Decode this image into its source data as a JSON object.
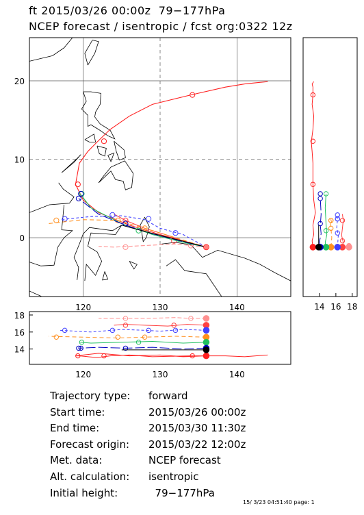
{
  "header": {
    "line1": "ft 2015/03/26 00:00z  79−177hPa",
    "line2": "NCEP forecast / isentropic / fcst org:0322 12z"
  },
  "map": {
    "lon_ticks": [
      "120",
      "130",
      "140"
    ],
    "lat_ticks": [
      "20",
      "10",
      "0"
    ],
    "lon_range": [
      113,
      147
    ],
    "lat_range": [
      -7.5,
      25.5
    ]
  },
  "side_panel": {
    "ticks": [
      "14",
      "16",
      "18"
    ],
    "range": [
      12,
      18.6
    ]
  },
  "bottom_panel": {
    "ticks": [
      "18",
      "16",
      "14"
    ],
    "range": [
      12.2,
      18.4
    ]
  },
  "info": [
    {
      "label": "Trajectory type:",
      "value": "forward"
    },
    {
      "label": "Start time:",
      "value": "2015/03/26 00:00z"
    },
    {
      "label": "End time:",
      "value": "2015/03/30 11:30z"
    },
    {
      "label": "Forecast origin:",
      "value": "2015/03/22 12:00z"
    },
    {
      "label": "Met. data:",
      "value": "NCEP forecast"
    },
    {
      "label": "Alt. calculation:",
      "value": "isentropic"
    },
    {
      "label": "Initial height:",
      "value": "  79−177hPa"
    }
  ],
  "footer": "15/ 3/23 04:51:40 page: 1",
  "trajectories": [
    {
      "color": "#ff2020",
      "dash": "",
      "height": 13.2,
      "points": [
        [
          136,
          -1.2
        ],
        [
          133,
          -0.4
        ],
        [
          130,
          0.4
        ],
        [
          126,
          1.6
        ],
        [
          122,
          3.2
        ],
        [
          120,
          4.8
        ],
        [
          119,
          6.8
        ],
        [
          119.5,
          9.5
        ],
        [
          120.6,
          11
        ],
        [
          121.8,
          12.2
        ],
        [
          123.5,
          13.8
        ],
        [
          126,
          15.5
        ],
        [
          129,
          17
        ],
        [
          134,
          18.2
        ],
        [
          138.5,
          19.2
        ],
        [
          141,
          19.6
        ],
        [
          144,
          19.9
        ]
      ],
      "markers": [
        [
          119.3,
          6.8
        ],
        [
          122.7,
          12.3
        ],
        [
          134.2,
          18.2
        ]
      ],
      "pressure": [
        13.2,
        13.1,
        13.3,
        13.2,
        13.5,
        13.3,
        13.2,
        13.2,
        13.1,
        13.0,
        13.2,
        13.3,
        13.1,
        13.2
      ]
    },
    {
      "color": "#ff4040",
      "dash": "",
      "height": 16.8,
      "points": [
        [
          136,
          -1.2
        ],
        [
          133.5,
          -0.6
        ],
        [
          131,
          0.3
        ],
        [
          128,
          1.2
        ],
        [
          125.5,
          2.2
        ],
        [
          124,
          3
        ]
      ],
      "markers": [
        [
          125.5,
          2.2
        ],
        [
          131.8,
          -0.4
        ]
      ],
      "pressure": [
        16.8,
        16.9,
        16.7,
        16.8,
        16.9,
        16.8,
        16.8
      ]
    },
    {
      "color": "#ff9090",
      "dash": "6 3",
      "height": 17.6,
      "points": [
        [
          136,
          -1.2
        ],
        [
          134,
          -1.0
        ],
        [
          132,
          -0.8
        ],
        [
          128,
          -1.0
        ],
        [
          124,
          -1.2
        ],
        [
          122,
          -1.1
        ]
      ],
      "markers": [
        [
          134,
          -1.0
        ],
        [
          125.5,
          -1.2
        ]
      ],
      "pressure": [
        17.6,
        17.6,
        17.7,
        17.6,
        17.6
      ]
    },
    {
      "color": "#4040ff",
      "dash": "4 3",
      "height": 16.2,
      "points": [
        [
          136,
          -1.2
        ],
        [
          133,
          0.4
        ],
        [
          130,
          1.2
        ],
        [
          128,
          2.3
        ],
        [
          125,
          2.8
        ],
        [
          121,
          2.7
        ],
        [
          117,
          2.3
        ]
      ],
      "markers": [
        [
          123.8,
          2.9
        ],
        [
          128.5,
          2.4
        ],
        [
          132,
          0.6
        ],
        [
          117.6,
          2.4
        ]
      ],
      "pressure": [
        16.2,
        16.3,
        16.1,
        16.2,
        16.3,
        16.0,
        16.2
      ]
    },
    {
      "color": "#ff9020",
      "dash": "6 4",
      "height": 15.4,
      "points": [
        [
          136,
          -1.2
        ],
        [
          132,
          0
        ],
        [
          128,
          1.2
        ],
        [
          124.5,
          2.2
        ],
        [
          120,
          2.3
        ],
        [
          115.5,
          1.8
        ]
      ],
      "markers": [
        [
          124.5,
          2.2
        ],
        [
          116.5,
          2.2
        ],
        [
          128,
          1.2
        ]
      ],
      "pressure": [
        15.4,
        15.5,
        15.4,
        15.3,
        15.4,
        15.5
      ]
    },
    {
      "color": "#20c060",
      "dash": "",
      "height": 14.8,
      "points": [
        [
          136,
          -1.2
        ],
        [
          133,
          -0.6
        ],
        [
          129,
          0.4
        ],
        [
          125,
          1.8
        ],
        [
          121,
          3.8
        ],
        [
          119.6,
          5.6
        ]
      ],
      "markers": [
        [
          119.8,
          5.6
        ],
        [
          127.2,
          0.9
        ]
      ],
      "pressure": [
        14.8,
        14.7,
        14.9,
        14.8,
        14.7,
        14.8
      ]
    },
    {
      "color": "#0000c0",
      "dash": "14 4",
      "height": 14.1,
      "points": [
        [
          136,
          -1.2
        ],
        [
          133,
          -0.5
        ],
        [
          129,
          0.5
        ],
        [
          125.5,
          1.6
        ],
        [
          122,
          3
        ],
        [
          119.4,
          5.0
        ]
      ],
      "markers": [
        [
          119.4,
          5.0
        ],
        [
          125.5,
          1.8
        ],
        [
          119.7,
          5.6
        ]
      ],
      "pressure": [
        14.1,
        14.0,
        14.2,
        14.1,
        14.2,
        14.1
      ]
    },
    {
      "color": "#000000",
      "dash": "",
      "height": 13.9,
      "points": [
        [
          136,
          -1.2
        ],
        [
          132,
          -0.2
        ],
        [
          128,
          0.8
        ],
        [
          125,
          1.6
        ]
      ],
      "markers": [],
      "pressure": [
        13.9,
        13.9
      ]
    }
  ],
  "coast_lines": [
    [
      [
        113,
        22.5
      ],
      [
        116,
        23.2
      ],
      [
        117.5,
        24.2
      ],
      [
        118.6,
        25.5
      ]
    ],
    [
      [
        120.6,
        22
      ],
      [
        121.5,
        23.5
      ],
      [
        122,
        25
      ],
      [
        121.2,
        25.2
      ],
      [
        120.2,
        23.5
      ],
      [
        120.6,
        22
      ]
    ],
    [
      [
        120,
        18.6
      ],
      [
        121,
        18.6
      ],
      [
        122.3,
        18.4
      ],
      [
        122.2,
        17
      ],
      [
        121.6,
        16
      ],
      [
        121.5,
        15.4
      ],
      [
        122.2,
        14.5
      ],
      [
        123.5,
        13.7
      ],
      [
        124.1,
        12.6
      ],
      [
        123.2,
        13
      ],
      [
        122,
        13.8
      ],
      [
        121,
        14.4
      ],
      [
        120.6,
        14.2
      ],
      [
        120.6,
        15.6
      ],
      [
        119.8,
        16.4
      ],
      [
        120.4,
        17.4
      ],
      [
        120,
        18.6
      ]
    ],
    [
      [
        124,
        12.3
      ],
      [
        125.3,
        11.2
      ],
      [
        125.5,
        10.2
      ],
      [
        124.7,
        9.9
      ],
      [
        124.3,
        11.0
      ],
      [
        124,
        12.3
      ]
    ],
    [
      [
        121.8,
        11.7
      ],
      [
        123,
        11.4
      ],
      [
        122.8,
        10.4
      ],
      [
        122.1,
        10.7
      ],
      [
        121.8,
        11.7
      ]
    ],
    [
      [
        123.2,
        10.5
      ],
      [
        124,
        10.8
      ],
      [
        123.6,
        9.7
      ],
      [
        123.2,
        10.5
      ]
    ],
    [
      [
        120.2,
        12.5
      ],
      [
        121.4,
        13.2
      ],
      [
        121.6,
        12.2
      ],
      [
        120.8,
        12.2
      ],
      [
        120.2,
        12.5
      ]
    ],
    [
      [
        117.2,
        8.3
      ],
      [
        118.8,
        9.6
      ],
      [
        119.7,
        10.6
      ],
      [
        119.2,
        10.1
      ],
      [
        117.2,
        8.3
      ]
    ],
    [
      [
        123.6,
        9
      ],
      [
        125.4,
        9.8
      ],
      [
        126.5,
        8.2
      ],
      [
        126.3,
        6.4
      ],
      [
        125.5,
        6.1
      ],
      [
        125.2,
        7.2
      ],
      [
        124.2,
        7.4
      ],
      [
        123.6,
        8.5
      ],
      [
        122,
        7
      ],
      [
        122.6,
        7.8
      ],
      [
        123.6,
        9
      ]
    ],
    [
      [
        116.8,
        7
      ],
      [
        117.4,
        6.2
      ],
      [
        118.8,
        5.2
      ],
      [
        118.2,
        4.4
      ],
      [
        115.6,
        4.2
      ],
      [
        113,
        3.2
      ]
    ],
    [
      [
        117.5,
        4.2
      ],
      [
        117.2,
        1
      ],
      [
        118.6,
        0.9
      ],
      [
        117.5,
        0
      ],
      [
        116.7,
        -1.2
      ],
      [
        116.2,
        -3.5
      ],
      [
        114.5,
        -3.6
      ],
      [
        113,
        -3.1
      ]
    ],
    [
      [
        119.2,
        -5.4
      ],
      [
        119.4,
        -3.8
      ],
      [
        118.8,
        -2.5
      ],
      [
        119.5,
        -0.8
      ],
      [
        120,
        0.5
      ],
      [
        120.8,
        1.3
      ],
      [
        123.8,
        0.9
      ],
      [
        125,
        1.6
      ],
      [
        124.2,
        0.4
      ],
      [
        121,
        0.6
      ],
      [
        120.6,
        -1.1
      ],
      [
        121.8,
        -1.8
      ],
      [
        122.4,
        -3
      ],
      [
        121.6,
        -4.8
      ],
      [
        120.4,
        -3.4
      ],
      [
        120.2,
        -5.5
      ]
    ],
    [
      [
        122.8,
        -4.3
      ],
      [
        123.2,
        -5.3
      ],
      [
        122.5,
        -5.4
      ],
      [
        122.8,
        -4.3
      ]
    ],
    [
      [
        126,
        -3
      ],
      [
        126.6,
        -4
      ],
      [
        127,
        -3.4
      ],
      [
        126,
        -3
      ]
    ],
    [
      [
        127.4,
        1.6
      ],
      [
        128,
        2.6
      ],
      [
        128.6,
        1.4
      ],
      [
        128.2,
        0
      ],
      [
        127.8,
        -0.5
      ],
      [
        127.6,
        0.8
      ],
      [
        127.4,
        1.6
      ]
    ],
    [
      [
        130.2,
        -0.8
      ],
      [
        132,
        -0.6
      ],
      [
        134,
        -0.9
      ],
      [
        135.5,
        -2.5
      ],
      [
        137.5,
        -1.6
      ],
      [
        141,
        -2.6
      ],
      [
        143,
        -3.4
      ],
      [
        145,
        -4.5
      ],
      [
        147,
        -5.5
      ]
    ],
    [
      [
        130.8,
        -3.6
      ],
      [
        132,
        -2.8
      ],
      [
        133.2,
        -4.2
      ],
      [
        136,
        -4.6
      ],
      [
        138,
        -7.5
      ]
    ],
    [
      [
        113,
        -6.8
      ],
      [
        114.6,
        -7.5
      ]
    ]
  ]
}
